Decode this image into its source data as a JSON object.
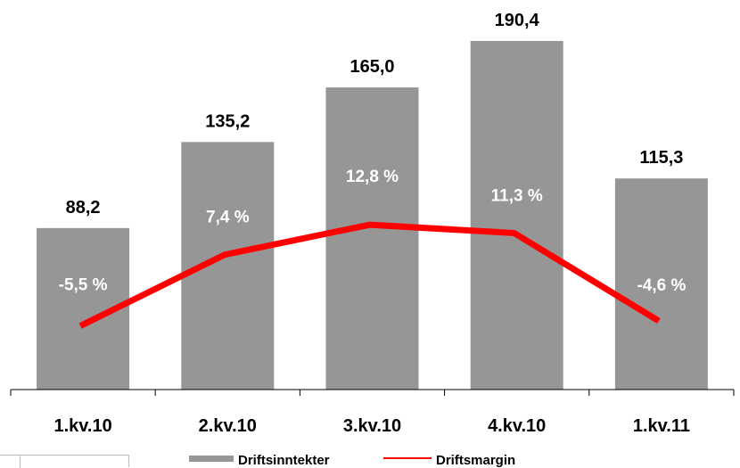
{
  "chart_data": {
    "type": "bar",
    "categories": [
      "1.kv.10",
      "2.kv.10",
      "3.kv.10",
      "4.kv.10",
      "1.kv.11"
    ],
    "series": [
      {
        "name": "Driftsinntekter",
        "kind": "bar",
        "values": [
          88.2,
          135.2,
          165.0,
          190.4,
          115.3
        ],
        "labels": [
          "88,2",
          "135,2",
          "165,0",
          "190,4",
          "115,3"
        ],
        "color": "#969696"
      },
      {
        "name": "Driftsmargin",
        "kind": "line",
        "values": [
          -5.5,
          7.4,
          12.8,
          11.3,
          -4.6
        ],
        "labels": [
          "-5,5 %",
          "7,4 %",
          "12,8 %",
          "11,3 %",
          "-4,6 %"
        ],
        "color": "#ff0000"
      }
    ],
    "legend": "bottom",
    "grid": false
  }
}
